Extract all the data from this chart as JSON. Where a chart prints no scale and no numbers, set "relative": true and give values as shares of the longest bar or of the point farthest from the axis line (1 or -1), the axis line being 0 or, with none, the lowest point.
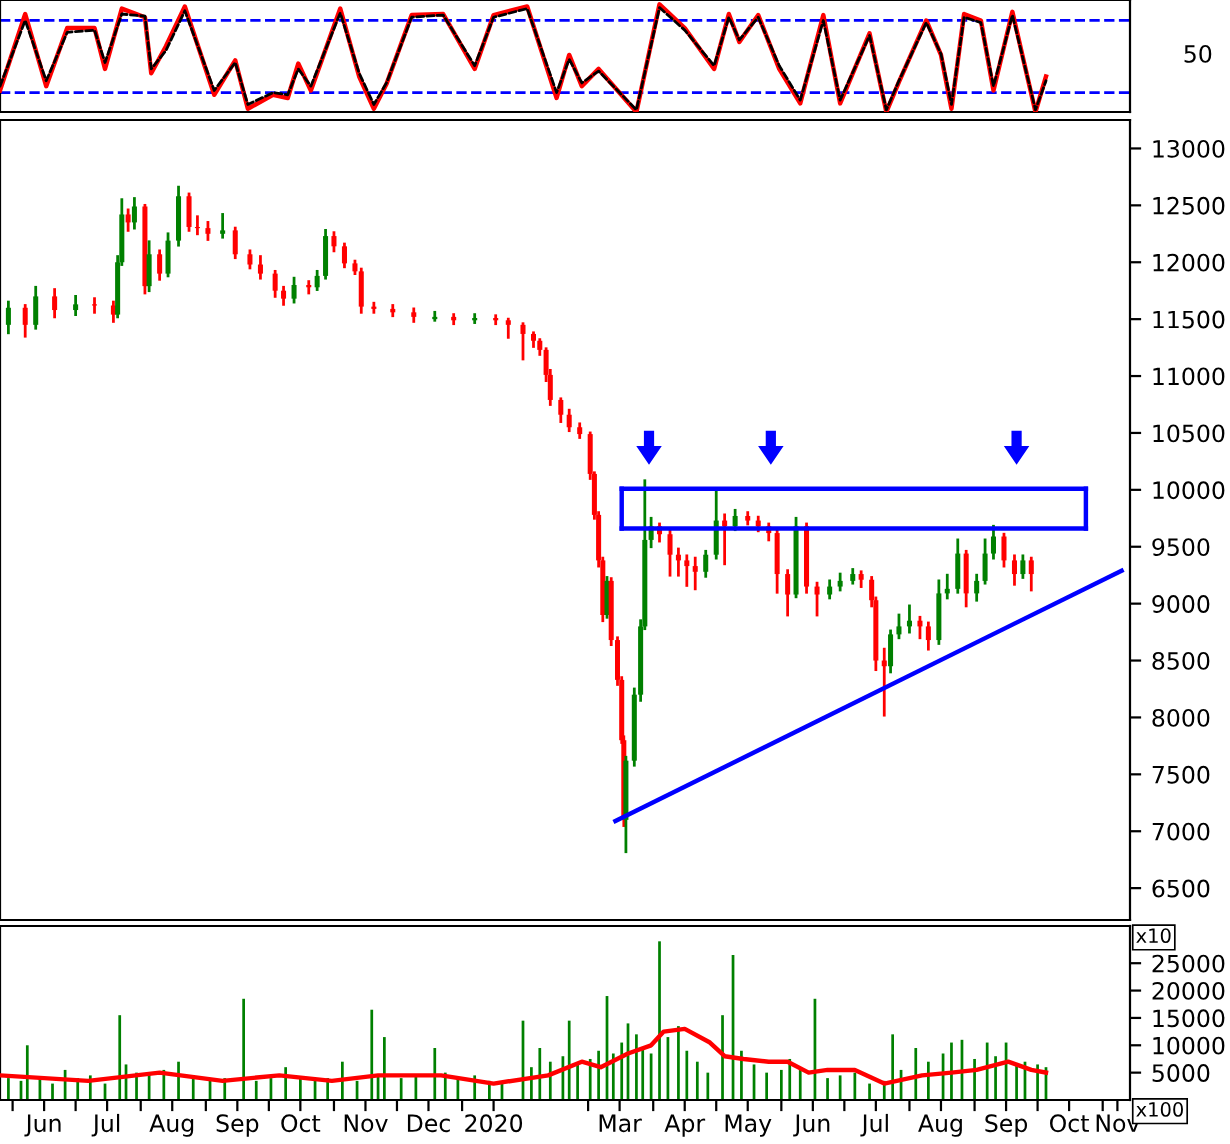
{
  "chart_data": [
    {
      "type": "line",
      "xlim": [
        "2019-05-26",
        "2020-11-14"
      ],
      "relative": true,
      "tick_labels": "y",
      "annotations": [
        "50"
      ],
      "x": [
        "2019-05-26",
        "2019-06-07",
        "2019-06-17",
        "2019-06-27",
        "2019-07-10",
        "2019-07-15",
        "2019-07-23",
        "2019-08-03",
        "2019-08-06",
        "2019-08-13",
        "2019-08-22",
        "2019-09-05",
        "2019-09-15",
        "2019-09-21",
        "2019-10-03",
        "2019-10-10",
        "2019-10-15",
        "2019-10-21",
        "2019-11-04",
        "2019-11-13",
        "2019-11-20",
        "2019-11-26",
        "2019-12-08",
        "2019-12-23",
        "2020-01-07",
        "2020-01-16",
        "2020-02-01",
        "2020-02-15",
        "2020-02-21",
        "2020-02-27",
        "2020-03-06",
        "2020-03-24",
        "2020-04-04",
        "2020-04-16",
        "2020-04-30",
        "2020-05-07",
        "2020-05-12",
        "2020-05-21",
        "2020-05-31",
        "2020-06-10",
        "2020-06-21",
        "2020-06-29",
        "2020-07-13",
        "2020-07-21",
        "2020-07-27",
        "2020-08-09",
        "2020-08-16",
        "2020-08-21",
        "2020-08-27",
        "2020-09-04",
        "2020-09-10",
        "2020-09-19",
        "2020-09-30",
        "2020-10-05"
      ],
      "series": [
        {
          "color": "#000000",
          "line_style": "dashed",
          "values": [
            0.24,
            0.85,
            0.29,
            0.74,
            0.76,
            0.46,
            0.91,
            0.89,
            0.4,
            0.57,
            0.94,
            0.2,
            0.46,
            0.07,
            0.18,
            0.16,
            0.4,
            0.24,
            0.92,
            0.36,
            0.07,
            0.27,
            0.88,
            0.9,
            0.43,
            0.88,
            0.96,
            0.18,
            0.49,
            0.27,
            0.38,
            0.02,
            0.97,
            0.76,
            0.43,
            0.88,
            0.67,
            0.88,
            0.43,
            0.11,
            0.85,
            0.11,
            0.71,
            0.02,
            0.29,
            0.83,
            0.54,
            0.07,
            0.88,
            0.83,
            0.24,
            0.9,
            0.02,
            0.29
          ]
        },
        {
          "color": "#ff0000",
          "line_style": "solid",
          "values": [
            0.2,
            0.91,
            0.24,
            0.78,
            0.78,
            0.4,
            0.96,
            0.88,
            0.36,
            0.61,
            0.98,
            0.16,
            0.48,
            0.03,
            0.16,
            0.13,
            0.45,
            0.2,
            0.96,
            0.33,
            0.03,
            0.26,
            0.9,
            0.91,
            0.4,
            0.9,
            0.98,
            0.13,
            0.53,
            0.24,
            0.4,
            0,
            1,
            0.78,
            0.4,
            0.91,
            0.65,
            0.9,
            0.4,
            0.08,
            0.9,
            0.08,
            0.73,
            0,
            0.28,
            0.85,
            0.53,
            0.03,
            0.91,
            0.85,
            0.2,
            0.93,
            0,
            0.33
          ]
        }
      ],
      "ref_lines": [
        {
          "axis": "y",
          "value": 0.85,
          "color": "#0000ff",
          "line_style": "dashed"
        },
        {
          "axis": "y",
          "value": 0.18,
          "color": "#0000ff",
          "line_style": "dashed"
        }
      ]
    },
    {
      "type": "candlestick",
      "xlim": [
        "2019-05-26",
        "2020-11-14"
      ],
      "ylim": [
        6220,
        13250
      ],
      "yticks": [
        6500,
        7000,
        7500,
        8000,
        8500,
        9000,
        9500,
        10000,
        10500,
        11000,
        11500,
        12000,
        12500,
        13000
      ],
      "tick_labels": "y",
      "annotations": [
        "x10"
      ],
      "x": [
        "2019-05-30",
        "2019-06-07",
        "2019-06-12",
        "2019-06-21",
        "2019-07-01",
        "2019-07-10",
        "2019-07-19",
        "2019-07-21",
        "2019-07-23",
        "2019-07-26",
        "2019-07-29",
        "2019-08-03",
        "2019-08-05",
        "2019-08-10",
        "2019-08-14",
        "2019-08-19",
        "2019-08-24",
        "2019-08-28",
        "2019-09-02",
        "2019-09-09",
        "2019-09-15",
        "2019-09-22",
        "2019-09-27",
        "2019-10-04",
        "2019-10-08",
        "2019-10-13",
        "2019-10-20",
        "2019-10-24",
        "2019-10-28",
        "2019-11-01",
        "2019-11-06",
        "2019-11-11",
        "2019-11-14",
        "2019-11-20",
        "2019-11-29",
        "2019-12-09",
        "2019-12-19",
        "2019-12-28",
        "2020-01-07",
        "2020-01-17",
        "2020-01-23",
        "2020-01-30",
        "2020-02-04",
        "2020-02-07",
        "2020-02-10",
        "2020-02-12",
        "2020-02-17",
        "2020-02-21",
        "2020-02-26",
        "2020-03-02",
        "2020-03-04",
        "2020-03-06",
        "2020-03-08",
        "2020-03-10",
        "2020-03-12",
        "2020-03-15",
        "2020-03-17",
        "2020-03-18",
        "2020-03-19",
        "2020-03-23",
        "2020-03-26",
        "2020-03-28",
        "2020-03-31",
        "2020-04-04",
        "2020-04-09",
        "2020-04-13",
        "2020-04-17",
        "2020-04-21",
        "2020-04-26",
        "2020-05-01",
        "2020-05-05",
        "2020-05-10",
        "2020-05-16",
        "2020-05-21",
        "2020-05-26",
        "2020-05-30",
        "2020-06-04",
        "2020-06-08",
        "2020-06-13",
        "2020-06-18",
        "2020-06-24",
        "2020-06-29",
        "2020-07-05",
        "2020-07-09",
        "2020-07-14",
        "2020-07-16",
        "2020-07-20",
        "2020-07-23",
        "2020-07-27",
        "2020-08-01",
        "2020-08-06",
        "2020-08-10",
        "2020-08-15",
        "2020-08-19",
        "2020-08-24",
        "2020-08-28",
        "2020-09-02",
        "2020-09-06",
        "2020-09-10",
        "2020-09-15",
        "2020-09-20",
        "2020-09-24",
        "2020-09-28"
      ],
      "ohlc": [
        [
          11450,
          11650,
          11380,
          11600
        ],
        [
          11600,
          11620,
          11350,
          11450
        ],
        [
          11450,
          11780,
          11420,
          11700
        ],
        [
          11700,
          11760,
          11520,
          11580
        ],
        [
          11580,
          11700,
          11540,
          11630
        ],
        [
          11630,
          11680,
          11560,
          11620
        ],
        [
          11620,
          11650,
          11480,
          11540
        ],
        [
          11540,
          12050,
          11520,
          12000
        ],
        [
          12000,
          12550,
          11980,
          12420
        ],
        [
          12420,
          12460,
          12280,
          12350
        ],
        [
          12350,
          12560,
          12300,
          12490
        ],
        [
          12490,
          12500,
          11730,
          11790
        ],
        [
          11790,
          12180,
          11750,
          12070
        ],
        [
          12070,
          12100,
          11850,
          11900
        ],
        [
          11900,
          12250,
          11880,
          12190
        ],
        [
          12190,
          12660,
          12150,
          12580
        ],
        [
          12580,
          12600,
          12280,
          12310
        ],
        [
          12310,
          12400,
          12250,
          12300
        ],
        [
          12300,
          12350,
          12200,
          12250
        ],
        [
          12250,
          12420,
          12220,
          12280
        ],
        [
          12280,
          12300,
          12040,
          12070
        ],
        [
          12070,
          12100,
          11950,
          11980
        ],
        [
          11980,
          12050,
          11860,
          11900
        ],
        [
          11900,
          11920,
          11700,
          11750
        ],
        [
          11750,
          11780,
          11630,
          11680
        ],
        [
          11680,
          11860,
          11650,
          11800
        ],
        [
          11800,
          11830,
          11730,
          11780
        ],
        [
          11780,
          11920,
          11760,
          11880
        ],
        [
          11880,
          12280,
          11860,
          12230
        ],
        [
          12230,
          12260,
          12100,
          12140
        ],
        [
          12140,
          12160,
          11960,
          11990
        ],
        [
          11990,
          12010,
          11900,
          11920
        ],
        [
          11920,
          11940,
          11560,
          11610
        ],
        [
          11610,
          11640,
          11560,
          11590
        ],
        [
          11590,
          11620,
          11530,
          11560
        ],
        [
          11560,
          11590,
          11480,
          11520
        ],
        [
          11500,
          11560,
          11490,
          11520
        ],
        [
          11520,
          11540,
          11460,
          11490
        ],
        [
          11490,
          11540,
          11470,
          11510
        ],
        [
          11510,
          11530,
          11460,
          11490
        ],
        [
          11490,
          11500,
          11340,
          11450
        ],
        [
          11450,
          11460,
          11150,
          11370
        ],
        [
          11370,
          11380,
          11260,
          11310
        ],
        [
          11310,
          11320,
          11190,
          11230
        ],
        [
          11230,
          11240,
          10960,
          11010
        ],
        [
          11010,
          11050,
          10750,
          10790
        ],
        [
          10790,
          10800,
          10600,
          10660
        ],
        [
          10660,
          10700,
          10520,
          10550
        ],
        [
          10550,
          10580,
          10460,
          10490
        ],
        [
          10490,
          10500,
          10100,
          10140
        ],
        [
          10140,
          10150,
          9750,
          9780
        ],
        [
          9780,
          9800,
          9330,
          9380
        ],
        [
          9380,
          9400,
          8850,
          8900
        ],
        [
          8900,
          9230,
          8880,
          9200
        ],
        [
          9200,
          9220,
          8640,
          8680
        ],
        [
          8680,
          8700,
          8290,
          8330
        ],
        [
          8330,
          8350,
          7780,
          7800
        ],
        [
          7800,
          7830,
          7050,
          7100
        ],
        [
          7100,
          7650,
          6820,
          7620
        ],
        [
          7620,
          8250,
          7580,
          8200
        ],
        [
          8200,
          8850,
          8150,
          8800
        ],
        [
          8800,
          10080,
          8780,
          9560
        ],
        [
          9560,
          9750,
          9500,
          9680
        ],
        [
          9680,
          9700,
          9550,
          9610
        ],
        [
          9610,
          9650,
          9250,
          9430
        ],
        [
          9430,
          9480,
          9250,
          9380
        ],
        [
          9380,
          9420,
          9160,
          9330
        ],
        [
          9330,
          9400,
          9130,
          9280
        ],
        [
          9280,
          9460,
          9240,
          9430
        ],
        [
          9430,
          10000,
          9400,
          9730
        ],
        [
          9730,
          9780,
          9350,
          9680
        ],
        [
          9680,
          9820,
          9650,
          9770
        ],
        [
          9770,
          9800,
          9700,
          9730
        ],
        [
          9730,
          9760,
          9640,
          9680
        ],
        [
          9680,
          9700,
          9560,
          9620
        ],
        [
          9620,
          9640,
          9100,
          9260
        ],
        [
          9260,
          9290,
          8900,
          9080
        ],
        [
          9080,
          9750,
          9060,
          9680
        ],
        [
          9680,
          9700,
          9100,
          9150
        ],
        [
          9150,
          9180,
          8900,
          9080
        ],
        [
          9080,
          9200,
          9050,
          9150
        ],
        [
          9150,
          9260,
          9120,
          9200
        ],
        [
          9200,
          9300,
          9180,
          9260
        ],
        [
          9260,
          9280,
          9150,
          9210
        ],
        [
          9210,
          9230,
          8980,
          9030
        ],
        [
          9030,
          9050,
          8420,
          8500
        ],
        [
          8500,
          8600,
          8020,
          8450
        ],
        [
          8450,
          8760,
          8400,
          8730
        ],
        [
          8730,
          8900,
          8700,
          8800
        ],
        [
          8800,
          8980,
          8750,
          8850
        ],
        [
          8850,
          8880,
          8700,
          8800
        ],
        [
          8800,
          8830,
          8600,
          8680
        ],
        [
          8680,
          9200,
          8650,
          9090
        ],
        [
          9090,
          9250,
          9050,
          9130
        ],
        [
          9130,
          9560,
          9100,
          9440
        ],
        [
          9440,
          9460,
          8980,
          9090
        ],
        [
          9090,
          9250,
          9030,
          9200
        ],
        [
          9200,
          9560,
          9180,
          9440
        ],
        [
          9440,
          9680,
          9400,
          9590
        ],
        [
          9590,
          9610,
          9330,
          9380
        ],
        [
          9380,
          9420,
          9170,
          9260
        ],
        [
          9260,
          9420,
          9230,
          9380
        ],
        [
          9380,
          9400,
          9120,
          9260
        ]
      ],
      "colors": [
        "#008000",
        "#ff0000",
        "#008000",
        "#ff0000",
        "#008000",
        "#ff0000",
        "#ff0000",
        "#008000",
        "#008000",
        "#ff0000",
        "#008000",
        "#ff0000",
        "#008000",
        "#ff0000",
        "#008000",
        "#008000",
        "#ff0000",
        "#ff0000",
        "#ff0000",
        "#008000",
        "#ff0000",
        "#ff0000",
        "#ff0000",
        "#ff0000",
        "#ff0000",
        "#008000",
        "#ff0000",
        "#008000",
        "#008000",
        "#ff0000",
        "#ff0000",
        "#ff0000",
        "#ff0000",
        "#ff0000",
        "#ff0000",
        "#ff0000",
        "#008000",
        "#ff0000",
        "#008000",
        "#ff0000",
        "#ff0000",
        "#ff0000",
        "#ff0000",
        "#ff0000",
        "#ff0000",
        "#ff0000",
        "#ff0000",
        "#ff0000",
        "#ff0000",
        "#ff0000",
        "#ff0000",
        "#ff0000",
        "#ff0000",
        "#008000",
        "#ff0000",
        "#ff0000",
        "#ff0000",
        "#ff0000",
        "#008000",
        "#008000",
        "#008000",
        "#008000",
        "#008000",
        "#ff0000",
        "#ff0000",
        "#ff0000",
        "#ff0000",
        "#ff0000",
        "#008000",
        "#008000",
        "#ff0000",
        "#008000",
        "#ff0000",
        "#ff0000",
        "#ff0000",
        "#ff0000",
        "#ff0000",
        "#008000",
        "#ff0000",
        "#ff0000",
        "#008000",
        "#008000",
        "#008000",
        "#ff0000",
        "#ff0000",
        "#ff0000",
        "#ff0000",
        "#008000",
        "#008000",
        "#008000",
        "#ff0000",
        "#ff0000",
        "#008000",
        "#008000",
        "#008000",
        "#ff0000",
        "#008000",
        "#008000",
        "#008000",
        "#ff0000",
        "#ff0000",
        "#008000",
        "#ff0000"
      ],
      "series": [
        {
          "type": "line",
          "color": "#0000ff",
          "x": [
            "2020-03-14",
            "2020-11-10"
          ],
          "values": [
            7090,
            9290
          ]
        },
        {
          "type": "line",
          "color": "#0000ff",
          "x": [
            "2020-03-17",
            "2020-10-24"
          ],
          "values": [
            10010,
            10010
          ]
        },
        {
          "type": "line",
          "color": "#0000ff",
          "x": [
            "2020-03-17",
            "2020-10-24"
          ],
          "values": [
            9660,
            9660
          ]
        },
        {
          "type": "line",
          "color": "#0000ff",
          "x": [
            "2020-03-17",
            "2020-03-17"
          ],
          "values": [
            9660,
            10010
          ]
        },
        {
          "type": "line",
          "color": "#0000ff",
          "x": [
            "2020-10-24",
            "2020-10-24"
          ],
          "values": [
            9660,
            10010
          ]
        },
        {
          "type": "scatter",
          "marker": "triangle",
          "color": "#0000ff",
          "x": [
            "2020-03-30",
            "2020-05-27",
            "2020-09-21"
          ],
          "values": [
            10370,
            10370,
            10370
          ]
        }
      ]
    },
    {
      "type": "bar",
      "xlim": [
        "2019-05-26",
        "2020-11-14"
      ],
      "ylim": [
        0,
        31800
      ],
      "yticks": [
        5000,
        10000,
        15000,
        20000,
        25000
      ],
      "annotations": [
        "x100"
      ],
      "xticks": [
        {
          "value": "2019-06-01",
          "label": null
        },
        {
          "value": "2019-06-16",
          "label": "Jun"
        },
        {
          "value": "2019-07-01",
          "label": null
        },
        {
          "value": "2019-07-16",
          "label": "Jul"
        },
        {
          "value": "2019-08-01",
          "label": null
        },
        {
          "value": "2019-08-16",
          "label": "Aug"
        },
        {
          "value": "2019-09-01",
          "label": null
        },
        {
          "value": "2019-09-16",
          "label": "Sep"
        },
        {
          "value": "2019-10-01",
          "label": null
        },
        {
          "value": "2019-10-16",
          "label": "Oct"
        },
        {
          "value": "2019-11-01",
          "label": null
        },
        {
          "value": "2019-11-16",
          "label": "Nov"
        },
        {
          "value": "2019-12-01",
          "label": null
        },
        {
          "value": "2019-12-16",
          "label": "Dec"
        },
        {
          "value": "2020-01-01",
          "label": null
        },
        {
          "value": "2020-01-16",
          "label": "2020"
        },
        {
          "value": "2020-03-01",
          "label": null
        },
        {
          "value": "2020-03-16",
          "label": "Mar"
        },
        {
          "value": "2020-04-01",
          "label": null
        },
        {
          "value": "2020-04-16",
          "label": "Apr"
        },
        {
          "value": "2020-05-01",
          "label": null
        },
        {
          "value": "2020-05-16",
          "label": "May"
        },
        {
          "value": "2020-06-01",
          "label": null
        },
        {
          "value": "2020-06-16",
          "label": "Jun"
        },
        {
          "value": "2020-07-01",
          "label": null
        },
        {
          "value": "2020-07-16",
          "label": "Jul"
        },
        {
          "value": "2020-08-01",
          "label": null
        },
        {
          "value": "2020-08-16",
          "label": "Aug"
        },
        {
          "value": "2020-09-01",
          "label": null
        },
        {
          "value": "2020-09-16",
          "label": "Sep"
        },
        {
          "value": "2020-10-01",
          "label": null
        },
        {
          "value": "2020-10-16",
          "label": "Oct"
        },
        {
          "value": "2020-11-01",
          "label": null
        },
        {
          "value": "2020-11-08",
          "label": "Nov"
        }
      ],
      "series": [
        {
          "type": "bar",
          "color": "#008000",
          "x": [
            "2019-05-30",
            "2019-06-05",
            "2019-06-08",
            "2019-06-14",
            "2019-06-20",
            "2019-06-26",
            "2019-07-02",
            "2019-07-08",
            "2019-07-15",
            "2019-07-22",
            "2019-07-25",
            "2019-07-30",
            "2019-08-05",
            "2019-08-12",
            "2019-08-19",
            "2019-08-26",
            "2019-09-03",
            "2019-09-10",
            "2019-09-19",
            "2019-09-25",
            "2019-10-02",
            "2019-10-09",
            "2019-10-16",
            "2019-10-23",
            "2019-10-29",
            "2019-11-05",
            "2019-11-12",
            "2019-11-19",
            "2019-11-22",
            "2019-11-25",
            "2019-12-03",
            "2019-12-10",
            "2019-12-19",
            "2019-12-24",
            "2019-12-30",
            "2020-01-07",
            "2020-01-14",
            "2020-01-20",
            "2020-01-30",
            "2020-02-03",
            "2020-02-07",
            "2020-02-12",
            "2020-02-18",
            "2020-02-21",
            "2020-02-25",
            "2020-03-02",
            "2020-03-06",
            "2020-03-10",
            "2020-03-13",
            "2020-03-17",
            "2020-03-20",
            "2020-03-24",
            "2020-03-27",
            "2020-03-31",
            "2020-04-04",
            "2020-04-08",
            "2020-04-13",
            "2020-04-17",
            "2020-04-22",
            "2020-04-27",
            "2020-05-04",
            "2020-05-09",
            "2020-05-13",
            "2020-05-19",
            "2020-05-25",
            "2020-06-01",
            "2020-06-05",
            "2020-06-10",
            "2020-06-17",
            "2020-06-23",
            "2020-06-29",
            "2020-07-06",
            "2020-07-13",
            "2020-07-20",
            "2020-07-24",
            "2020-07-28",
            "2020-08-04",
            "2020-08-10",
            "2020-08-17",
            "2020-08-21",
            "2020-08-26",
            "2020-09-01",
            "2020-09-07",
            "2020-09-11",
            "2020-09-16",
            "2020-09-21",
            "2020-09-25",
            "2020-10-01",
            "2020-10-05"
          ],
          "values": [
            4000,
            3500,
            10000,
            4000,
            3000,
            5500,
            4000,
            4500,
            3000,
            15500,
            6500,
            5000,
            5000,
            5500,
            7000,
            4000,
            3500,
            4000,
            18500,
            3500,
            4000,
            6000,
            4000,
            3500,
            4000,
            7000,
            3500,
            16500,
            4500,
            11500,
            4000,
            4500,
            9500,
            5000,
            4000,
            4500,
            3500,
            3000,
            14500,
            6000,
            9500,
            7000,
            8000,
            14500,
            6500,
            7500,
            9000,
            19000,
            8500,
            10500,
            14000,
            12000,
            9500,
            8500,
            29000,
            11500,
            13500,
            9000,
            7000,
            5000,
            15500,
            26500,
            9000,
            6500,
            5000,
            5500,
            7500,
            6000,
            18500,
            4000,
            4500,
            5000,
            3000,
            3500,
            12000,
            5500,
            9500,
            7000,
            8500,
            10500,
            11000,
            7500,
            10500,
            8000,
            10500,
            6500,
            7000,
            6500,
            6000
          ]
        },
        {
          "type": "line",
          "color": "#ff0000",
          "x": [
            "2019-05-26",
            "2019-07-07",
            "2019-08-10",
            "2019-09-09",
            "2019-10-06",
            "2019-10-31",
            "2019-11-22",
            "2019-12-22",
            "2020-01-16",
            "2020-02-11",
            "2020-02-27",
            "2020-03-07",
            "2020-03-20",
            "2020-03-31",
            "2020-04-06",
            "2020-04-16",
            "2020-04-28",
            "2020-05-05",
            "2020-05-14",
            "2020-05-26",
            "2020-06-04",
            "2020-06-14",
            "2020-06-23",
            "2020-07-06",
            "2020-07-20",
            "2020-08-07",
            "2020-08-21",
            "2020-09-02",
            "2020-09-17",
            "2020-09-28",
            "2020-10-05"
          ],
          "values": [
            4500,
            3500,
            5000,
            3500,
            4500,
            3500,
            4500,
            4500,
            3000,
            4500,
            7000,
            6000,
            8500,
            10000,
            12500,
            13000,
            10500,
            8000,
            7500,
            7000,
            7000,
            5000,
            5500,
            5500,
            3000,
            4500,
            5000,
            5500,
            7000,
            5500,
            5000
          ]
        }
      ]
    }
  ]
}
